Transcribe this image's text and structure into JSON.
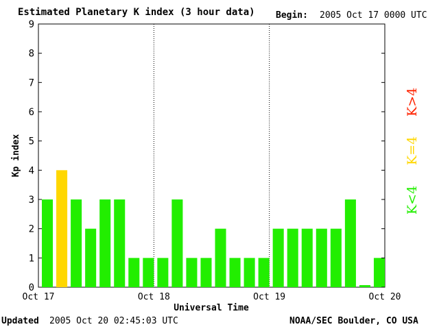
{
  "header": {
    "title": "Estimated Planetary K index (3 hour data)",
    "begin_label": "Begin:",
    "begin_value": "2005 Oct 17 0000 UTC"
  },
  "footer": {
    "updated_label": "Updated",
    "updated_value": "2005 Oct 20 02:45:03 UTC",
    "source": "NOAA/SEC Boulder, CO USA"
  },
  "legend": [
    {
      "label": "K<4",
      "color": "#22ee00"
    },
    {
      "label": "K=4",
      "color": "#ffd700"
    },
    {
      "label": "K>4",
      "color": "#ff2200"
    }
  ],
  "chart_data": {
    "type": "bar",
    "title": "Estimated Planetary K index (3 hour data)",
    "xlabel": "Universal Time",
    "ylabel": "Kp index",
    "ylim": [
      0,
      9
    ],
    "yticks": [
      0,
      1,
      2,
      3,
      4,
      5,
      6,
      7,
      8,
      9
    ],
    "xticks": [
      "Oct 17",
      "Oct 18",
      "Oct 19",
      "Oct 20"
    ],
    "values": [
      3,
      4,
      3,
      2,
      3,
      3,
      1,
      1,
      1,
      3,
      1,
      1,
      2,
      1,
      1,
      1,
      2,
      2,
      2,
      2,
      2,
      3,
      0.07,
      1
    ],
    "colors": {
      "below_4": "#22ee00",
      "equal_4": "#ffd700",
      "above_4": "#ff2200"
    }
  }
}
